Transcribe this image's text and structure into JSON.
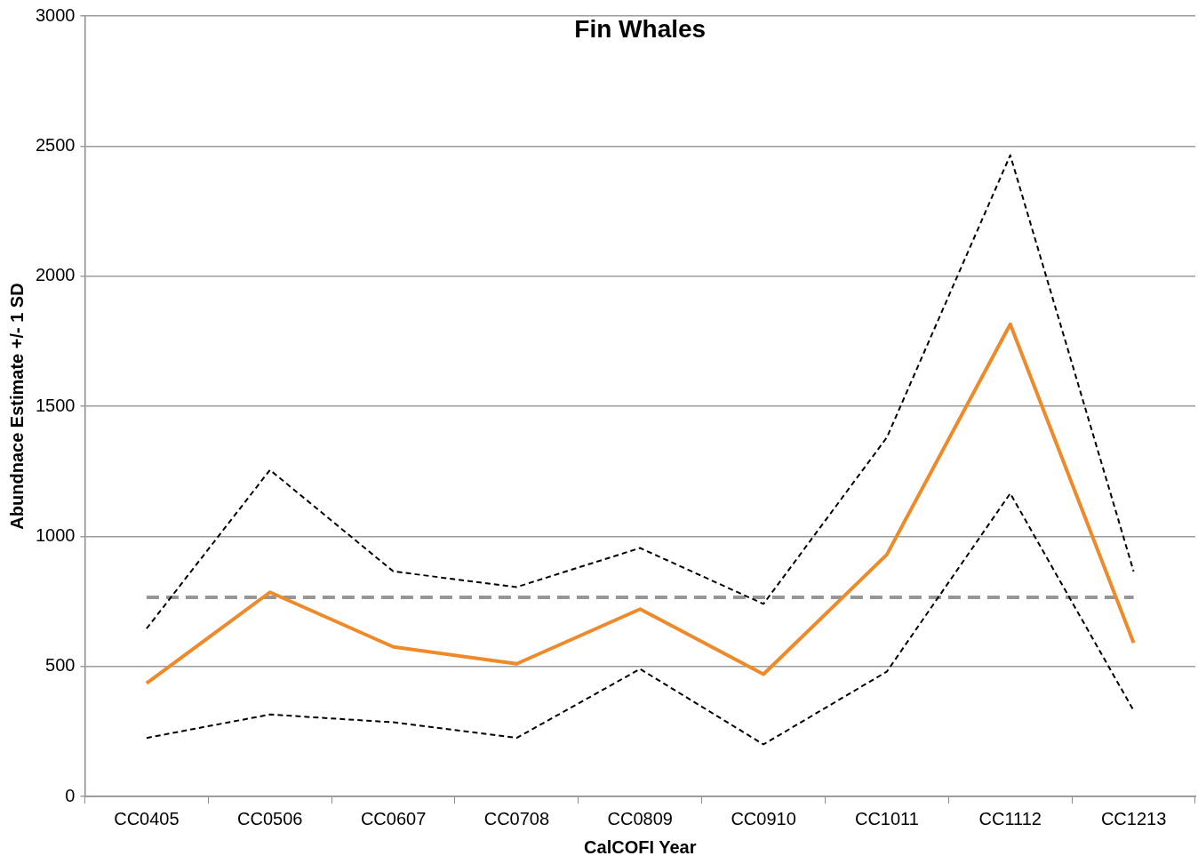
{
  "chart_data": {
    "type": "line",
    "title": "Fin Whales",
    "xlabel": "CalCOFI Year",
    "ylabel": "Abundnace Estimate +/- 1 SD",
    "categories": [
      "CC0405",
      "CC0506",
      "CC0607",
      "CC0708",
      "CC0809",
      "CC0910",
      "CC1011",
      "CC1112",
      "CC1213"
    ],
    "series": [
      {
        "color": "#ee8a2a",
        "line_style": "solid",
        "values": [
          435,
          785,
          575,
          510,
          720,
          470,
          930,
          1815,
          590
        ]
      },
      {
        "color": "#000000",
        "line_style": "dashed",
        "values": [
          645,
          1255,
          865,
          805,
          955,
          740,
          1380,
          2465,
          865
        ]
      },
      {
        "color": "#000000",
        "line_style": "dashed",
        "values": [
          225,
          315,
          285,
          225,
          490,
          200,
          480,
          1165,
          330
        ]
      }
    ],
    "ref_lines": [
      {
        "axis": "y",
        "value": 765,
        "color": "#969696",
        "line_style": "dashed"
      }
    ],
    "ylim": [
      0,
      3000
    ],
    "yticks": [
      0,
      500,
      1000,
      1500,
      2000,
      2500,
      3000
    ],
    "grid": "y",
    "legend": false,
    "marker": "none"
  }
}
